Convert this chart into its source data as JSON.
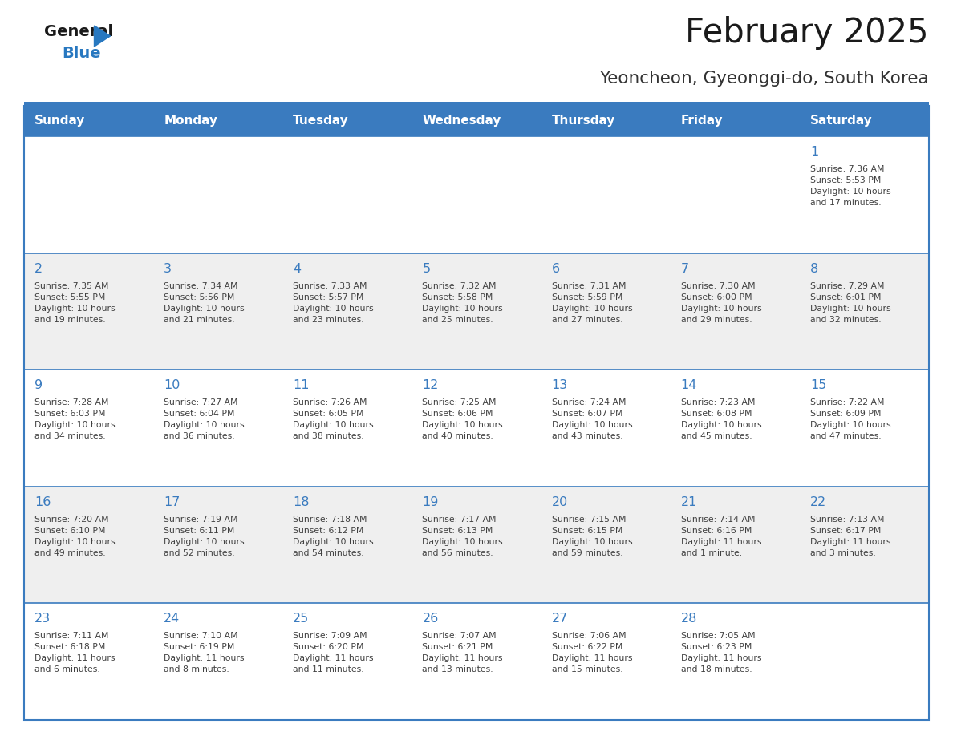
{
  "title": "February 2025",
  "subtitle": "Yeoncheon, Gyeonggi-do, South Korea",
  "days_of_week": [
    "Sunday",
    "Monday",
    "Tuesday",
    "Wednesday",
    "Thursday",
    "Friday",
    "Saturday"
  ],
  "header_bg": "#3A7BBF",
  "header_text": "#FFFFFF",
  "row_bg_light": "#EFEFEF",
  "row_bg_white": "#FFFFFF",
  "border_color": "#3A7BBF",
  "day_number_color": "#3A7BBF",
  "info_text_color": "#404040",
  "title_color": "#1a1a1a",
  "subtitle_color": "#333333",
  "logo_general_color": "#1a1a1a",
  "logo_blue_color": "#2878C0",
  "weeks": [
    {
      "bg": "white",
      "days": [
        {
          "date": null,
          "info": null
        },
        {
          "date": null,
          "info": null
        },
        {
          "date": null,
          "info": null
        },
        {
          "date": null,
          "info": null
        },
        {
          "date": null,
          "info": null
        },
        {
          "date": null,
          "info": null
        },
        {
          "date": 1,
          "info": "Sunrise: 7:36 AM\nSunset: 5:53 PM\nDaylight: 10 hours\nand 17 minutes."
        }
      ]
    },
    {
      "bg": "light",
      "days": [
        {
          "date": 2,
          "info": "Sunrise: 7:35 AM\nSunset: 5:55 PM\nDaylight: 10 hours\nand 19 minutes."
        },
        {
          "date": 3,
          "info": "Sunrise: 7:34 AM\nSunset: 5:56 PM\nDaylight: 10 hours\nand 21 minutes."
        },
        {
          "date": 4,
          "info": "Sunrise: 7:33 AM\nSunset: 5:57 PM\nDaylight: 10 hours\nand 23 minutes."
        },
        {
          "date": 5,
          "info": "Sunrise: 7:32 AM\nSunset: 5:58 PM\nDaylight: 10 hours\nand 25 minutes."
        },
        {
          "date": 6,
          "info": "Sunrise: 7:31 AM\nSunset: 5:59 PM\nDaylight: 10 hours\nand 27 minutes."
        },
        {
          "date": 7,
          "info": "Sunrise: 7:30 AM\nSunset: 6:00 PM\nDaylight: 10 hours\nand 29 minutes."
        },
        {
          "date": 8,
          "info": "Sunrise: 7:29 AM\nSunset: 6:01 PM\nDaylight: 10 hours\nand 32 minutes."
        }
      ]
    },
    {
      "bg": "white",
      "days": [
        {
          "date": 9,
          "info": "Sunrise: 7:28 AM\nSunset: 6:03 PM\nDaylight: 10 hours\nand 34 minutes."
        },
        {
          "date": 10,
          "info": "Sunrise: 7:27 AM\nSunset: 6:04 PM\nDaylight: 10 hours\nand 36 minutes."
        },
        {
          "date": 11,
          "info": "Sunrise: 7:26 AM\nSunset: 6:05 PM\nDaylight: 10 hours\nand 38 minutes."
        },
        {
          "date": 12,
          "info": "Sunrise: 7:25 AM\nSunset: 6:06 PM\nDaylight: 10 hours\nand 40 minutes."
        },
        {
          "date": 13,
          "info": "Sunrise: 7:24 AM\nSunset: 6:07 PM\nDaylight: 10 hours\nand 43 minutes."
        },
        {
          "date": 14,
          "info": "Sunrise: 7:23 AM\nSunset: 6:08 PM\nDaylight: 10 hours\nand 45 minutes."
        },
        {
          "date": 15,
          "info": "Sunrise: 7:22 AM\nSunset: 6:09 PM\nDaylight: 10 hours\nand 47 minutes."
        }
      ]
    },
    {
      "bg": "light",
      "days": [
        {
          "date": 16,
          "info": "Sunrise: 7:20 AM\nSunset: 6:10 PM\nDaylight: 10 hours\nand 49 minutes."
        },
        {
          "date": 17,
          "info": "Sunrise: 7:19 AM\nSunset: 6:11 PM\nDaylight: 10 hours\nand 52 minutes."
        },
        {
          "date": 18,
          "info": "Sunrise: 7:18 AM\nSunset: 6:12 PM\nDaylight: 10 hours\nand 54 minutes."
        },
        {
          "date": 19,
          "info": "Sunrise: 7:17 AM\nSunset: 6:13 PM\nDaylight: 10 hours\nand 56 minutes."
        },
        {
          "date": 20,
          "info": "Sunrise: 7:15 AM\nSunset: 6:15 PM\nDaylight: 10 hours\nand 59 minutes."
        },
        {
          "date": 21,
          "info": "Sunrise: 7:14 AM\nSunset: 6:16 PM\nDaylight: 11 hours\nand 1 minute."
        },
        {
          "date": 22,
          "info": "Sunrise: 7:13 AM\nSunset: 6:17 PM\nDaylight: 11 hours\nand 3 minutes."
        }
      ]
    },
    {
      "bg": "white",
      "days": [
        {
          "date": 23,
          "info": "Sunrise: 7:11 AM\nSunset: 6:18 PM\nDaylight: 11 hours\nand 6 minutes."
        },
        {
          "date": 24,
          "info": "Sunrise: 7:10 AM\nSunset: 6:19 PM\nDaylight: 11 hours\nand 8 minutes."
        },
        {
          "date": 25,
          "info": "Sunrise: 7:09 AM\nSunset: 6:20 PM\nDaylight: 11 hours\nand 11 minutes."
        },
        {
          "date": 26,
          "info": "Sunrise: 7:07 AM\nSunset: 6:21 PM\nDaylight: 11 hours\nand 13 minutes."
        },
        {
          "date": 27,
          "info": "Sunrise: 7:06 AM\nSunset: 6:22 PM\nDaylight: 11 hours\nand 15 minutes."
        },
        {
          "date": 28,
          "info": "Sunrise: 7:05 AM\nSunset: 6:23 PM\nDaylight: 11 hours\nand 18 minutes."
        },
        {
          "date": null,
          "info": null
        }
      ]
    }
  ]
}
